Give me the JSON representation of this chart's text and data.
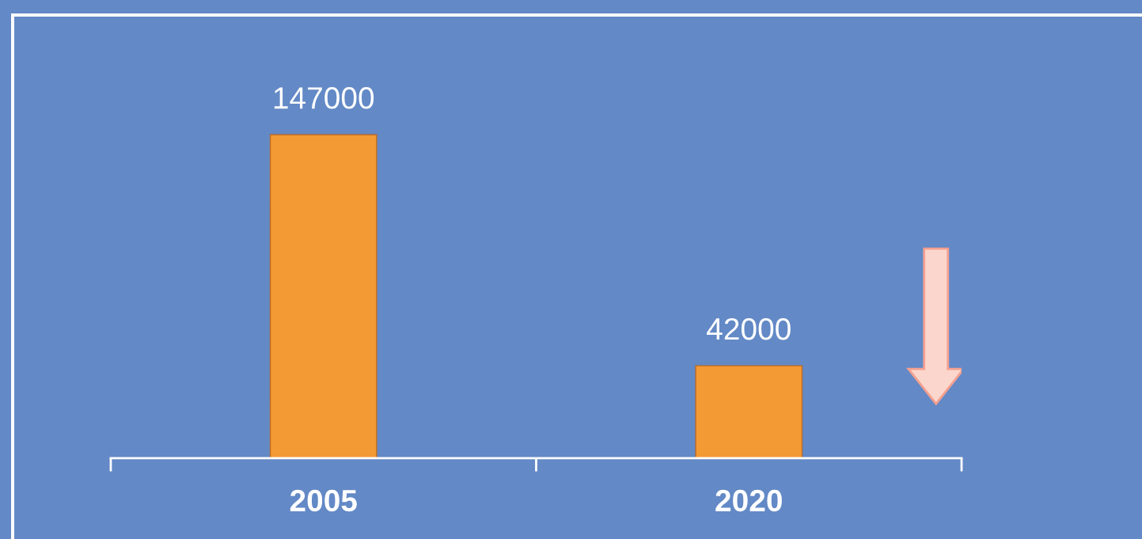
{
  "chart_data": {
    "type": "bar",
    "categories": [
      "2005",
      "2020"
    ],
    "values": [
      147000,
      42000
    ],
    "color": "#f39a35",
    "data_labels": true,
    "grid": false
  }
}
